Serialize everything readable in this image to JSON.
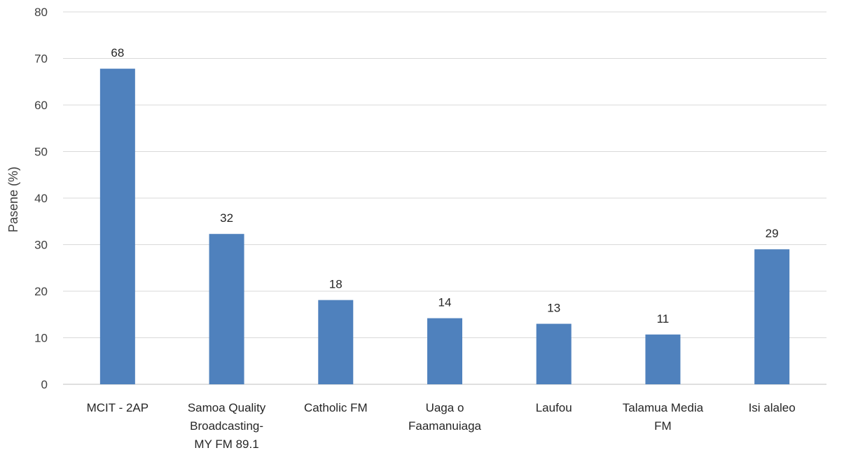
{
  "chart_data": {
    "type": "bar",
    "title": "",
    "xlabel": "",
    "ylabel": "Pasene (%)",
    "ylim": [
      0,
      80
    ],
    "yticks": [
      "0",
      "10",
      "20",
      "30",
      "40",
      "50",
      "60",
      "70",
      "80"
    ],
    "grid": true,
    "legend": "none",
    "categories": [
      [
        "MCIT - 2AP"
      ],
      [
        "Samoa Quality",
        "Broadcasting-",
        "MY FM 89.1"
      ],
      [
        "Catholic FM"
      ],
      [
        "Uaga o",
        "Faamanuiaga"
      ],
      [
        "Laufou"
      ],
      [
        "Talamua Media",
        "FM"
      ],
      [
        "Isi alaleo"
      ]
    ],
    "values": [
      67.8,
      32.3,
      18.1,
      14.2,
      13.0,
      10.7,
      29.0
    ],
    "data_labels": [
      "68",
      "32",
      "18",
      "14",
      "13",
      "11",
      "29"
    ],
    "bar_color": "#4f81bd"
  }
}
